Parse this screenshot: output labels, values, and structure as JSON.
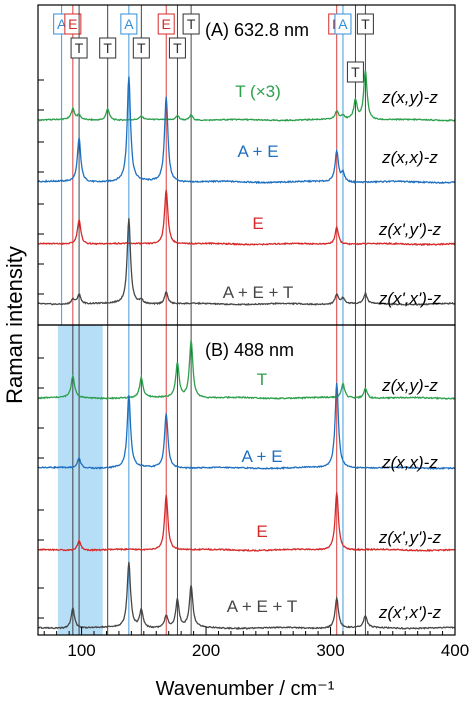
{
  "chart_data": {
    "type": "line",
    "shared_x_label": "Wavenumber / cm⁻¹",
    "shared_y_label": "Raman intensity",
    "xlim": [
      65,
      400
    ],
    "xticks": [
      100,
      200,
      300,
      400
    ],
    "colors": {
      "green": "#2ca04c",
      "blue": "#1f6fbf",
      "red": "#d62a2a",
      "gray": "#474747",
      "mode_A": "#2f8fd8",
      "mode_E": "#d62a2a",
      "mode_T": "#303030",
      "highlight": "#a9d8f5"
    },
    "panels": [
      {
        "label": "(A) 632.8 nm",
        "mode_lines": [
          {
            "mode": "A",
            "x": 84
          },
          {
            "mode": "E",
            "x": 93
          },
          {
            "mode": "T",
            "x": 98
          },
          {
            "mode": "T",
            "x": 121
          },
          {
            "mode": "A",
            "x": 138
          },
          {
            "mode": "T",
            "x": 148
          },
          {
            "mode": "E",
            "x": 168
          },
          {
            "mode": "T",
            "x": 177
          },
          {
            "mode": "T",
            "x": 188
          },
          {
            "mode": "E",
            "x": 305
          },
          {
            "mode": "A",
            "x": 310
          },
          {
            "mode": "T",
            "x": 320
          },
          {
            "mode": "T",
            "x": 328
          }
        ],
        "series": [
          {
            "name": "T (×3)",
            "polarization": "z(x,y)-z",
            "color": "green",
            "peaks": [
              [
                93,
                0.12
              ],
              [
                98,
                0.05
              ],
              [
                121,
                0.13
              ],
              [
                148,
                0.04
              ],
              [
                177,
                0.05
              ],
              [
                188,
                0.06
              ],
              [
                305,
                0.09
              ],
              [
                310,
                0.05
              ],
              [
                320,
                0.22
              ],
              [
                328,
                0.55
              ]
            ]
          },
          {
            "name": "A + E",
            "polarization": "z(x,x)-z",
            "color": "blue",
            "peaks": [
              [
                98,
                0.4
              ],
              [
                138,
                0.95
              ],
              [
                168,
                0.78
              ],
              [
                305,
                0.28
              ],
              [
                310,
                0.08
              ]
            ]
          },
          {
            "name": "E",
            "polarization": "z(x',y')-z",
            "color": "red",
            "peaks": [
              [
                98,
                0.25
              ],
              [
                168,
                0.55
              ],
              [
                305,
                0.17
              ]
            ]
          },
          {
            "name": "A + E + T",
            "polarization": "z(x',x')-z",
            "color": "gray",
            "peaks": [
              [
                93,
                0.05
              ],
              [
                98,
                0.1
              ],
              [
                138,
                0.85
              ],
              [
                148,
                0.04
              ],
              [
                168,
                0.12
              ],
              [
                305,
                0.1
              ],
              [
                310,
                0.06
              ],
              [
                328,
                0.1
              ]
            ]
          }
        ]
      },
      {
        "label": "(B) 488 nm",
        "highlight_band": [
          81,
          117
        ],
        "mode_lines": [
          {
            "mode": "T",
            "x": 93
          },
          {
            "mode": "T",
            "x": 98
          },
          {
            "mode": "T",
            "x": 121
          },
          {
            "mode": "A",
            "x": 138
          },
          {
            "mode": "T",
            "x": 148
          },
          {
            "mode": "E",
            "x": 168
          },
          {
            "mode": "T",
            "x": 177
          },
          {
            "mode": "T",
            "x": 188
          },
          {
            "mode": "E",
            "x": 305
          },
          {
            "mode": "A",
            "x": 310
          },
          {
            "mode": "T",
            "x": 320
          },
          {
            "mode": "T",
            "x": 328
          }
        ],
        "series": [
          {
            "name": "T",
            "polarization": "z(x,y)-z",
            "color": "green",
            "peaks": [
              [
                93,
                0.22
              ],
              [
                148,
                0.2
              ],
              [
                177,
                0.35
              ],
              [
                188,
                0.58
              ],
              [
                310,
                0.14
              ],
              [
                328,
                0.1
              ]
            ]
          },
          {
            "name": "A + E",
            "polarization": "z(x,x)-z",
            "color": "blue",
            "peaks": [
              [
                98,
                0.1
              ],
              [
                138,
                0.72
              ],
              [
                168,
                0.55
              ],
              [
                305,
                0.85
              ]
            ]
          },
          {
            "name": "E",
            "polarization": "z(x',y')-z",
            "color": "red",
            "peaks": [
              [
                98,
                0.1
              ],
              [
                168,
                0.55
              ],
              [
                305,
                0.58
              ]
            ]
          },
          {
            "name": "A + E + T",
            "polarization": "z(x',x')-z",
            "color": "gray",
            "peaks": [
              [
                93,
                0.2
              ],
              [
                138,
                0.65
              ],
              [
                148,
                0.18
              ],
              [
                168,
                0.12
              ],
              [
                177,
                0.28
              ],
              [
                188,
                0.42
              ],
              [
                305,
                0.3
              ],
              [
                328,
                0.12
              ]
            ]
          }
        ]
      }
    ]
  }
}
